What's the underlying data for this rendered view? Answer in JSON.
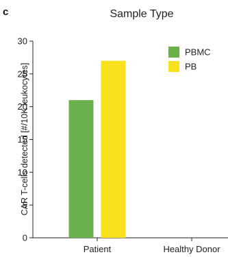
{
  "panel_label": "c",
  "chart_data": {
    "type": "bar",
    "title": "Sample Type",
    "xlabel": "",
    "ylabel": "CAR T-cells detected [#/10K leukocytes]",
    "categories": [
      "Patient",
      "Healthy Donor"
    ],
    "series": [
      {
        "name": "PBMC",
        "values": [
          21,
          0
        ],
        "color": "#6ab04c"
      },
      {
        "name": "PB",
        "values": [
          27,
          0
        ],
        "color": "#f9e11e"
      }
    ],
    "ylim": [
      0,
      30
    ],
    "yticks": [
      0,
      5,
      10,
      15,
      20,
      25,
      30
    ],
    "grid": false,
    "legend": "top-right"
  }
}
